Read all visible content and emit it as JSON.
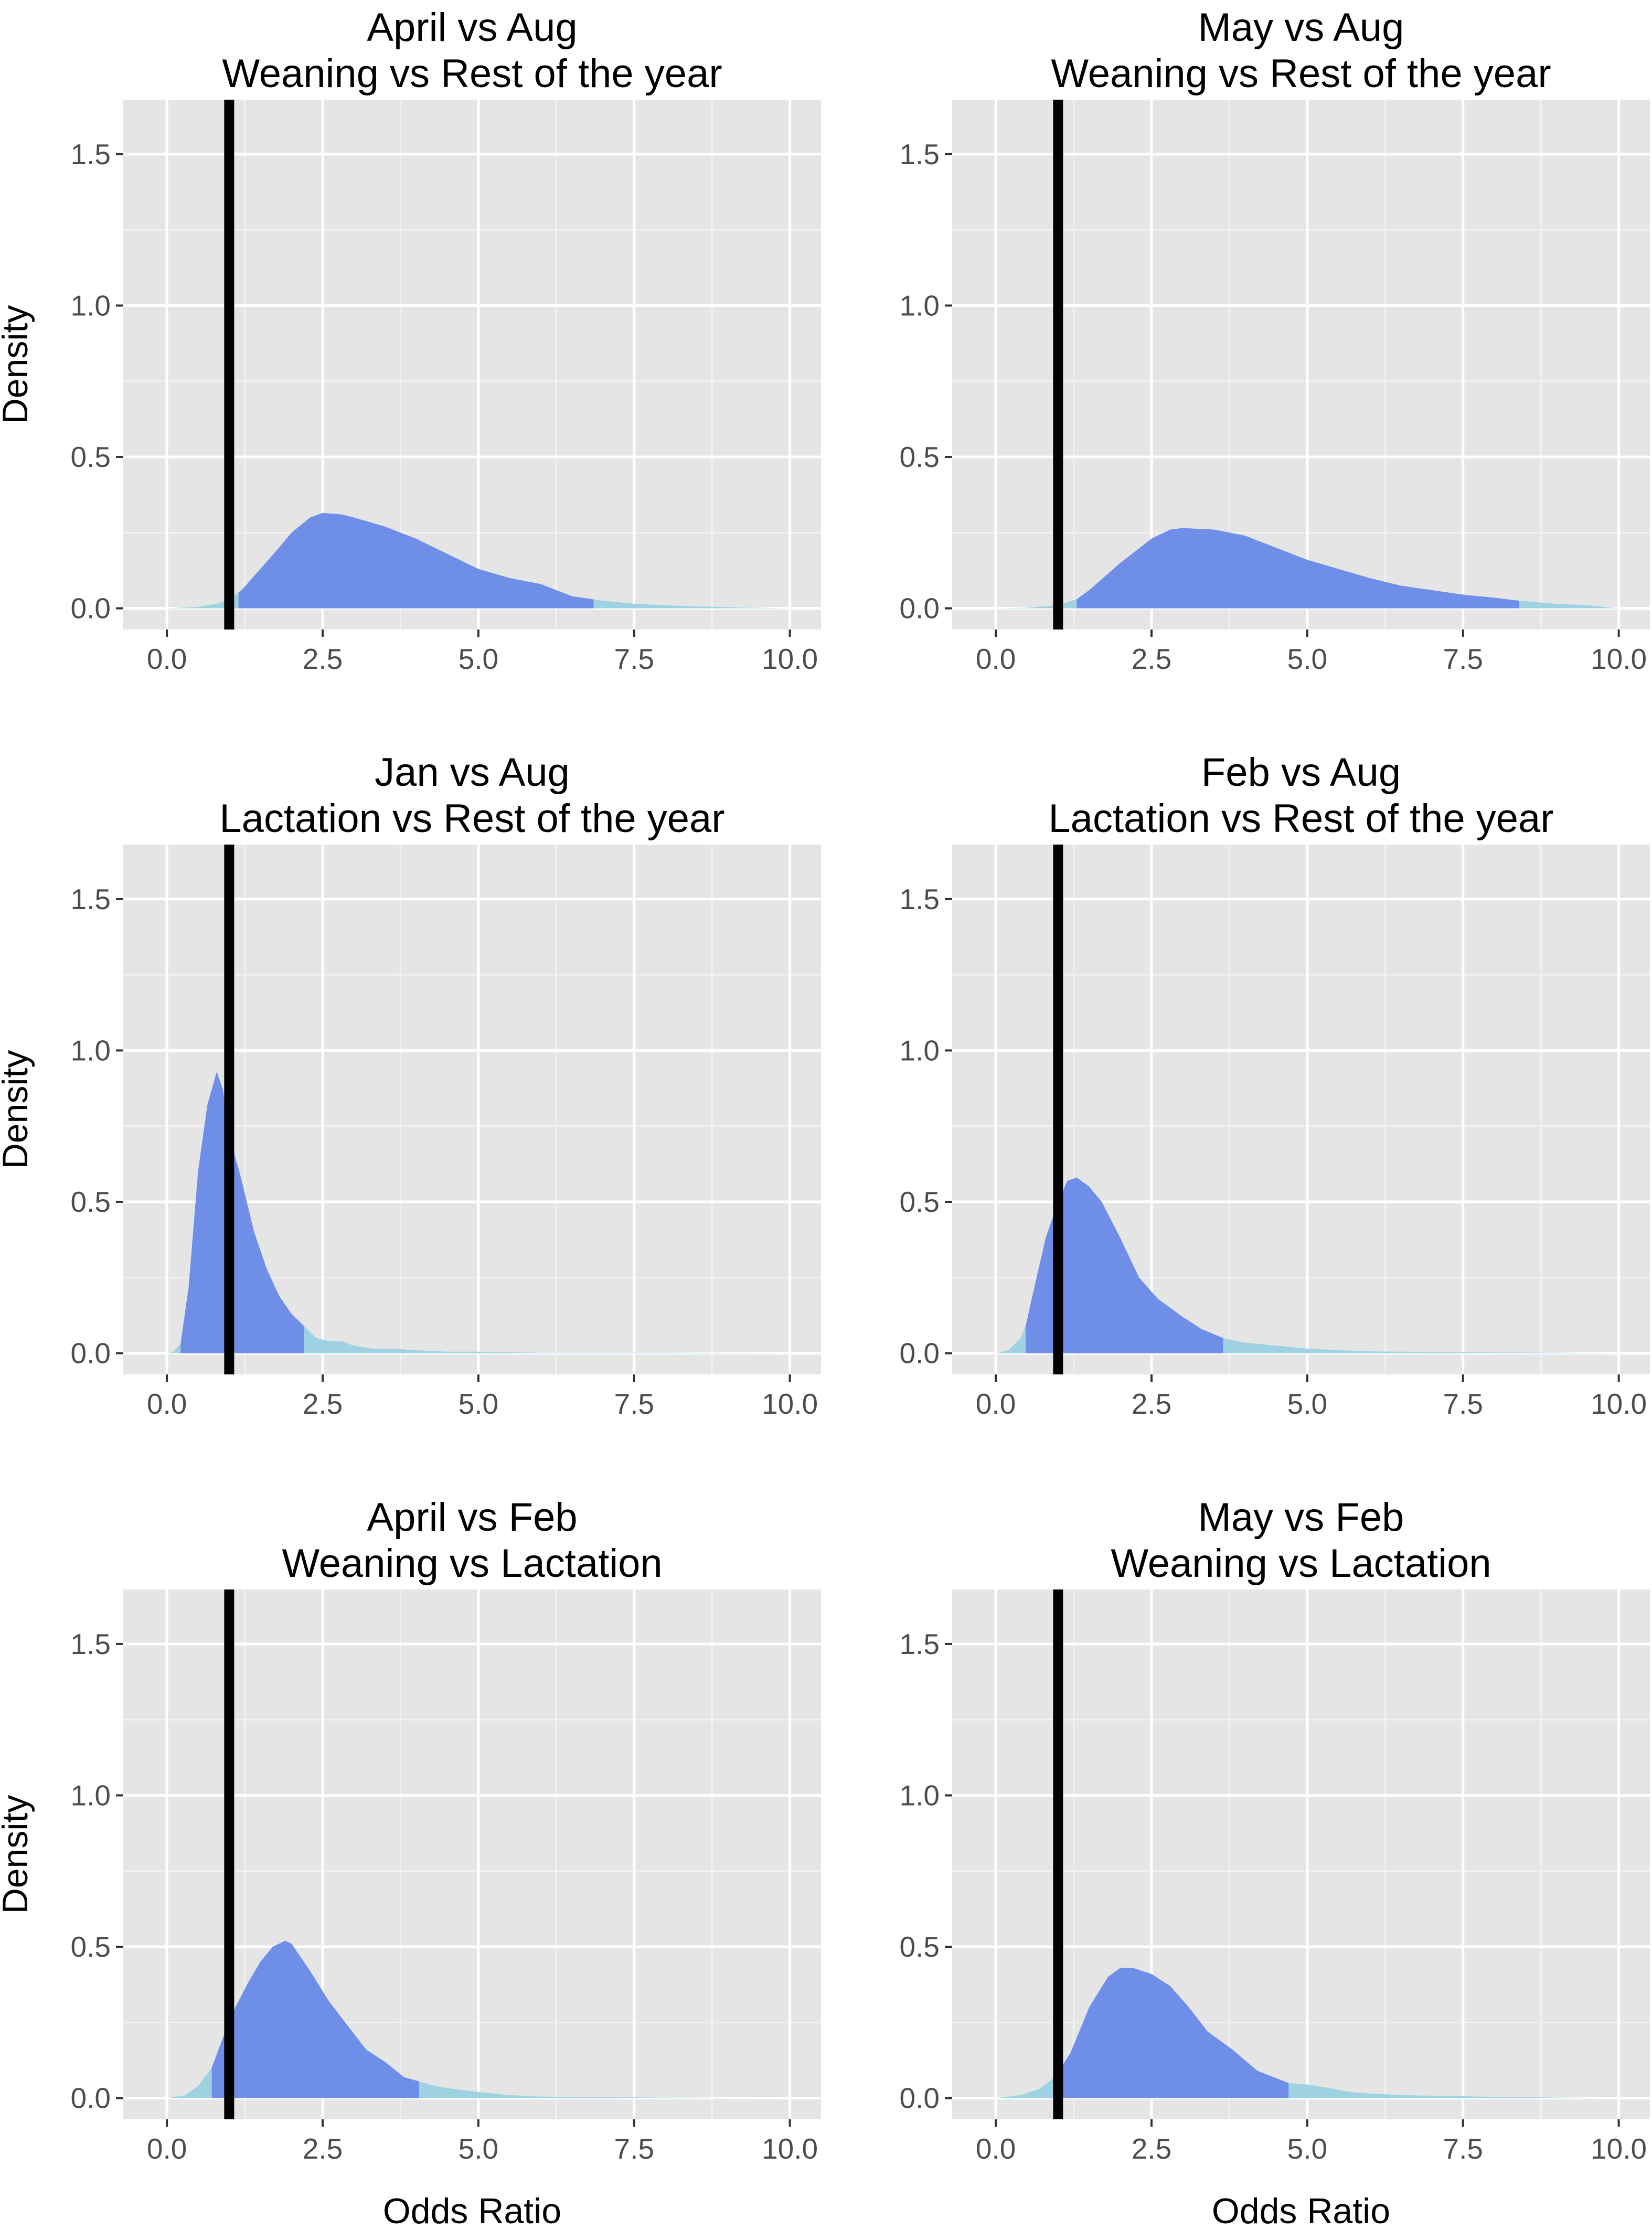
{
  "chart_data": [
    {
      "type": "area",
      "title_line1": "April vs Aug",
      "title_line2": "Weaning vs Rest of the year",
      "ylabel": "Density",
      "xlabel": "",
      "xlim": [
        -0.7,
        10.5
      ],
      "ylim": [
        -0.07,
        1.68
      ],
      "x_ticks": [
        "0.0",
        "2.5",
        "5.0",
        "7.5",
        "10.0"
      ],
      "y_ticks": [
        "0.0",
        "0.5",
        "1.0",
        "1.5"
      ],
      "grid": true,
      "reference_line_x": 1.0,
      "highlight_interval": [
        1.15,
        6.85
      ],
      "density": {
        "x": [
          0.0,
          0.5,
          0.8,
          1.0,
          1.2,
          1.5,
          1.8,
          2.0,
          2.3,
          2.5,
          2.8,
          3.0,
          3.5,
          4.0,
          4.5,
          5.0,
          5.5,
          6.0,
          6.5,
          7.0,
          7.5,
          8.0,
          8.5,
          9.0,
          9.5,
          10.0
        ],
        "y": [
          0.0,
          0.005,
          0.015,
          0.03,
          0.06,
          0.13,
          0.2,
          0.25,
          0.3,
          0.315,
          0.31,
          0.3,
          0.27,
          0.23,
          0.18,
          0.13,
          0.1,
          0.08,
          0.04,
          0.025,
          0.015,
          0.01,
          0.006,
          0.004,
          0.002,
          0.0
        ]
      }
    },
    {
      "type": "area",
      "title_line1": "May vs Aug",
      "title_line2": "Weaning vs Rest of the year",
      "ylabel": "",
      "xlabel": "",
      "xlim": [
        -0.7,
        10.5
      ],
      "ylim": [
        -0.07,
        1.68
      ],
      "x_ticks": [
        "0.0",
        "2.5",
        "5.0",
        "7.5",
        "10.0"
      ],
      "y_ticks": [
        "0.0",
        "0.5",
        "1.0",
        "1.5"
      ],
      "grid": true,
      "reference_line_x": 1.0,
      "highlight_interval": [
        1.3,
        8.4
      ],
      "density": {
        "x": [
          0.0,
          0.5,
          1.0,
          1.3,
          1.5,
          2.0,
          2.5,
          2.8,
          3.0,
          3.5,
          4.0,
          4.5,
          5.0,
          5.5,
          6.0,
          6.5,
          7.0,
          7.5,
          8.0,
          8.4,
          9.0,
          9.5,
          10.0
        ],
        "y": [
          0.0,
          0.002,
          0.01,
          0.03,
          0.06,
          0.15,
          0.23,
          0.26,
          0.265,
          0.26,
          0.24,
          0.2,
          0.16,
          0.13,
          0.1,
          0.075,
          0.06,
          0.045,
          0.035,
          0.025,
          0.015,
          0.01,
          0.0
        ]
      }
    },
    {
      "type": "area",
      "title_line1": "Jan vs Aug",
      "title_line2": "Lactation vs Rest of the year",
      "ylabel": "Density",
      "xlabel": "",
      "xlim": [
        -0.7,
        10.5
      ],
      "ylim": [
        -0.07,
        1.68
      ],
      "x_ticks": [
        "0.0",
        "2.5",
        "5.0",
        "7.5",
        "10.0"
      ],
      "y_ticks": [
        "0.0",
        "0.5",
        "1.0",
        "1.5"
      ],
      "grid": true,
      "reference_line_x": 1.0,
      "highlight_interval": [
        0.22,
        2.2
      ],
      "density": {
        "x": [
          0.0,
          0.1,
          0.22,
          0.35,
          0.5,
          0.65,
          0.8,
          0.9,
          1.0,
          1.2,
          1.4,
          1.6,
          1.8,
          2.0,
          2.2,
          2.4,
          2.6,
          2.8,
          3.0,
          3.3,
          3.6,
          4.0,
          4.5,
          5.0,
          6.0,
          7.0,
          8.0,
          9.0,
          10.0
        ],
        "y": [
          0.0,
          0.005,
          0.03,
          0.22,
          0.6,
          0.82,
          0.93,
          0.87,
          0.72,
          0.57,
          0.4,
          0.28,
          0.19,
          0.13,
          0.09,
          0.05,
          0.04,
          0.04,
          0.025,
          0.015,
          0.015,
          0.01,
          0.005,
          0.005,
          0.002,
          0.002,
          0.002,
          0.001,
          0.0
        ]
      }
    },
    {
      "type": "area",
      "title_line1": "Feb vs Aug",
      "title_line2": "Lactation vs Rest of the year",
      "ylabel": "",
      "xlabel": "",
      "xlim": [
        -0.7,
        10.5
      ],
      "ylim": [
        -0.07,
        1.68
      ],
      "x_ticks": [
        "0.0",
        "2.5",
        "5.0",
        "7.5",
        "10.0"
      ],
      "y_ticks": [
        "0.0",
        "0.5",
        "1.0",
        "1.5"
      ],
      "grid": true,
      "reference_line_x": 1.0,
      "highlight_interval": [
        0.48,
        3.65
      ],
      "density": {
        "x": [
          0.0,
          0.2,
          0.4,
          0.48,
          0.6,
          0.8,
          1.0,
          1.15,
          1.3,
          1.5,
          1.7,
          2.0,
          2.3,
          2.6,
          3.0,
          3.3,
          3.65,
          4.0,
          4.5,
          5.0,
          5.5,
          6.0,
          7.0,
          8.0,
          9.0,
          10.0
        ],
        "y": [
          0.0,
          0.01,
          0.05,
          0.09,
          0.2,
          0.38,
          0.5,
          0.57,
          0.58,
          0.55,
          0.5,
          0.38,
          0.25,
          0.18,
          0.12,
          0.08,
          0.05,
          0.035,
          0.025,
          0.015,
          0.01,
          0.006,
          0.004,
          0.003,
          0.002,
          0.0
        ]
      }
    },
    {
      "type": "area",
      "title_line1": "April vs Feb",
      "title_line2": "Weaning vs Lactation",
      "ylabel": "Density",
      "xlabel": "Odds Ratio",
      "xlim": [
        -0.7,
        10.5
      ],
      "ylim": [
        -0.07,
        1.68
      ],
      "x_ticks": [
        "0.0",
        "2.5",
        "5.0",
        "7.5",
        "10.0"
      ],
      "y_ticks": [
        "0.0",
        "0.5",
        "1.0",
        "1.5"
      ],
      "grid": true,
      "reference_line_x": 1.0,
      "highlight_interval": [
        0.72,
        4.05
      ],
      "density": {
        "x": [
          0.0,
          0.3,
          0.5,
          0.72,
          0.9,
          1.1,
          1.3,
          1.5,
          1.7,
          1.9,
          2.0,
          2.3,
          2.6,
          2.9,
          3.2,
          3.5,
          3.8,
          4.05,
          4.3,
          4.6,
          5.0,
          5.5,
          6.0,
          7.0,
          8.0,
          10.0
        ],
        "y": [
          0.0,
          0.01,
          0.04,
          0.1,
          0.2,
          0.3,
          0.38,
          0.45,
          0.5,
          0.52,
          0.51,
          0.42,
          0.32,
          0.24,
          0.16,
          0.12,
          0.07,
          0.055,
          0.04,
          0.03,
          0.02,
          0.01,
          0.005,
          0.003,
          0.002,
          0.0
        ]
      }
    },
    {
      "type": "area",
      "title_line1": "May vs Feb",
      "title_line2": "Weaning vs Lactation",
      "ylabel": "",
      "xlabel": "Odds Ratio",
      "xlim": [
        -0.7,
        10.5
      ],
      "ylim": [
        -0.07,
        1.68
      ],
      "x_ticks": [
        "0.0",
        "2.5",
        "5.0",
        "7.5",
        "10.0"
      ],
      "y_ticks": [
        "0.0",
        "0.5",
        "1.0",
        "1.5"
      ],
      "grid": true,
      "reference_line_x": 1.0,
      "highlight_interval": [
        0.95,
        4.7
      ],
      "density": {
        "x": [
          0.0,
          0.4,
          0.7,
          0.95,
          1.2,
          1.5,
          1.8,
          2.0,
          2.2,
          2.5,
          2.8,
          3.1,
          3.4,
          3.8,
          4.2,
          4.7,
          5.0,
          5.3,
          5.7,
          6.0,
          6.5,
          7.0,
          8.0,
          9.0,
          10.0
        ],
        "y": [
          0.0,
          0.01,
          0.03,
          0.07,
          0.15,
          0.3,
          0.4,
          0.43,
          0.43,
          0.41,
          0.37,
          0.3,
          0.22,
          0.16,
          0.09,
          0.05,
          0.045,
          0.035,
          0.02,
          0.015,
          0.01,
          0.008,
          0.004,
          0.002,
          0.0
        ]
      }
    }
  ],
  "colors": {
    "page_background": "#ffffff",
    "panel_background": "#e5e5e5",
    "grid_major": "#ffffff",
    "grid_minor": "#f2f2f2",
    "density_tail_fill": "#9ed2e2",
    "density_interval_fill": "#6e8ee8",
    "reference_line": "#000000",
    "tick_text": "#4d4d4d",
    "tick_mark": "#333333"
  }
}
